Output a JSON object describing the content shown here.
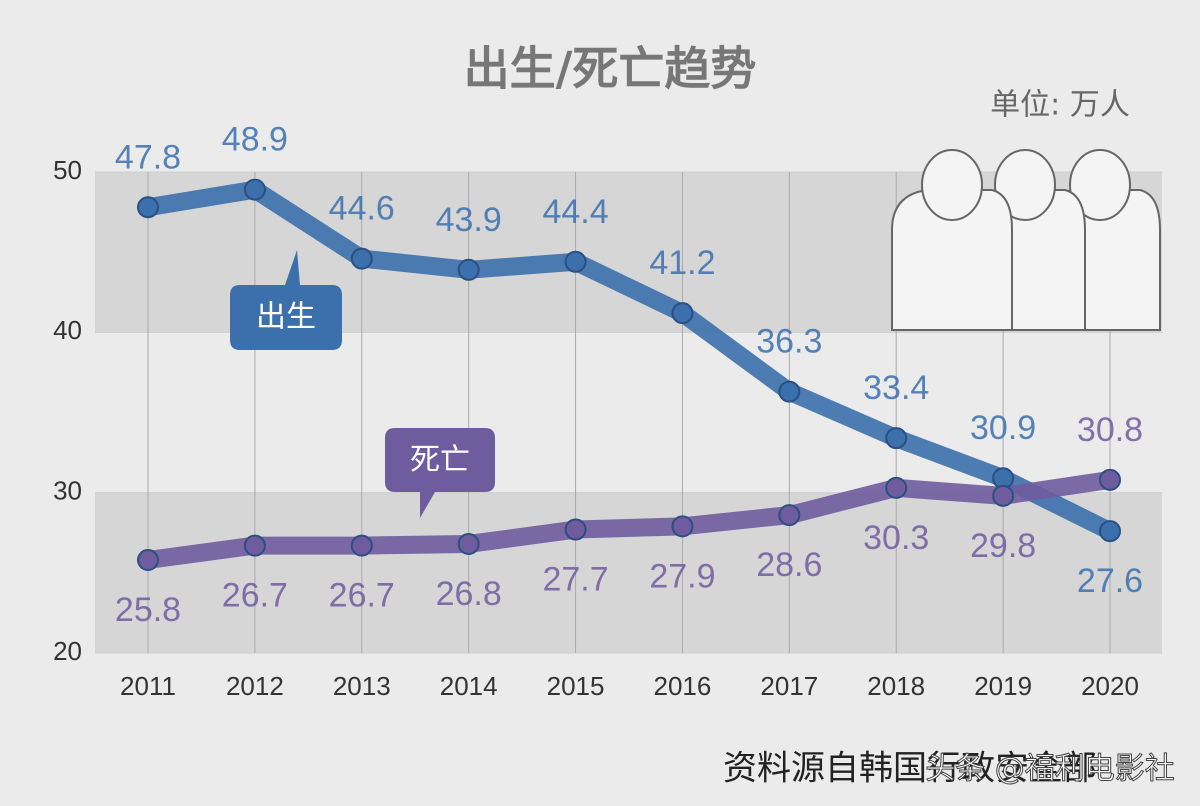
{
  "chart_data": {
    "type": "line",
    "title": "出生/死亡趋势",
    "unit": "单位: 万人",
    "categories": [
      "2011",
      "2012",
      "2013",
      "2014",
      "2015",
      "2016",
      "2017",
      "2018",
      "2019",
      "2020"
    ],
    "series": [
      {
        "name": "出生",
        "color": "#3c70ad",
        "values": [
          47.8,
          48.9,
          44.6,
          43.9,
          44.4,
          41.2,
          36.3,
          33.4,
          30.9,
          27.6
        ]
      },
      {
        "name": "死亡",
        "color": "#6f5c9f",
        "values": [
          25.8,
          26.7,
          26.7,
          26.8,
          27.7,
          27.9,
          28.6,
          30.3,
          29.8,
          30.8
        ]
      }
    ],
    "ylim": [
      20,
      50
    ],
    "yticks": [
      20,
      30,
      40,
      50
    ],
    "grid": true,
    "source": "资料源自韩国行政安全部",
    "watermark": "头条 @福利电影社"
  }
}
